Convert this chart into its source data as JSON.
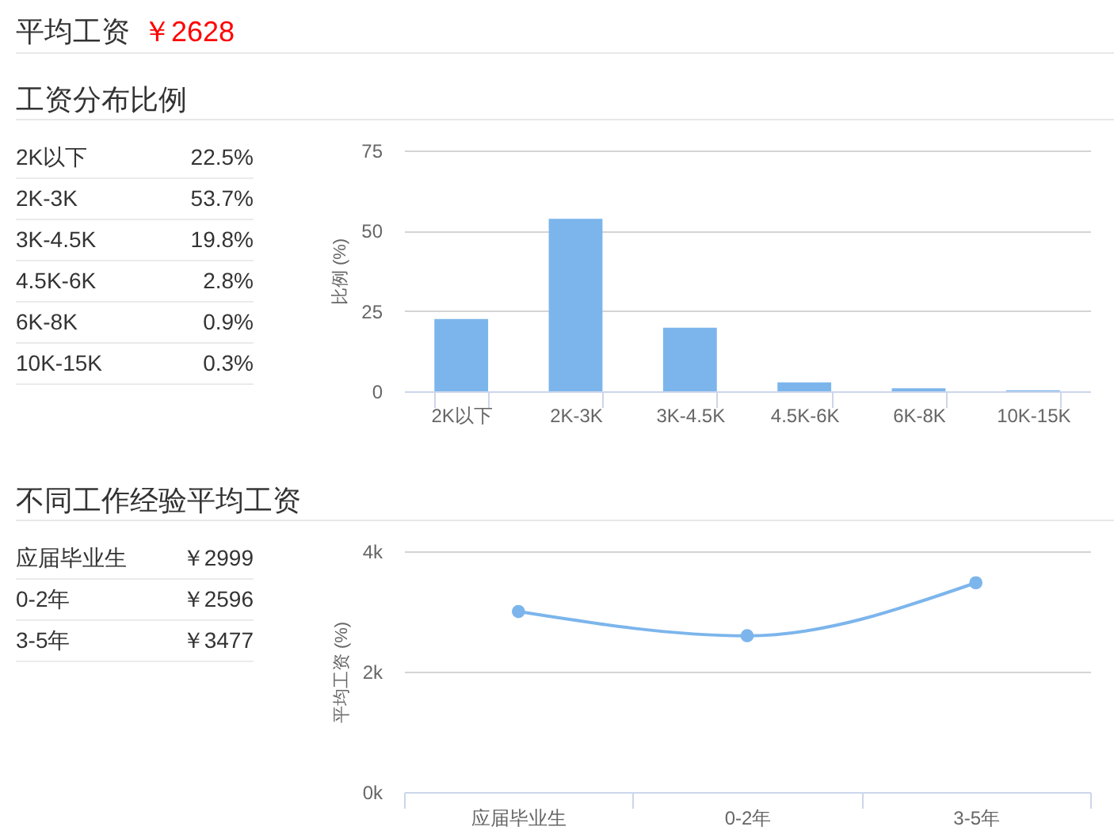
{
  "chart_data": [
    {
      "type": "other",
      "title": "平均工资",
      "annotations": [
        "￥2628"
      ]
    },
    {
      "type": "other",
      "title": "工资分布比例",
      "annotations": [
        "2K以下",
        "22.5%",
        "2K-3K",
        "53.7%",
        "3K-4.5K",
        "19.8%",
        "4.5K-6K",
        "2.8%",
        "6K-8K",
        "0.9%",
        "10K-15K",
        "0.3%"
      ]
    },
    {
      "type": "bar",
      "categories": [
        "2K以下",
        "2K-3K",
        "3K-4.5K",
        "4.5K-6K",
        "6K-8K",
        "10K-15K"
      ],
      "values": [
        22.5,
        53.7,
        19.8,
        2.8,
        0.9,
        0.3
      ],
      "color": "#7cb5ec",
      "ylabel": "比例 (%)",
      "ylim": [
        0,
        75
      ],
      "yticks": [
        0,
        25,
        50,
        75
      ],
      "grid": "y"
    },
    {
      "type": "other",
      "title": "不同工作经验平均工资",
      "annotations": [
        "应届毕业生",
        "￥2999",
        "0-2年",
        "￥2596",
        "3-5年",
        "￥3477"
      ]
    },
    {
      "type": "line",
      "categories": [
        "应届毕业生",
        "0-2年",
        "3-5年"
      ],
      "values": [
        2999,
        2596,
        3477
      ],
      "color": "#7cb5ec",
      "ylabel": "平均工资 (%)",
      "ylim": [
        0,
        4000
      ],
      "yticks": [
        {
          "value": 0,
          "label": "0k"
        },
        {
          "value": 2000,
          "label": "2k"
        },
        {
          "value": 4000,
          "label": "4k"
        }
      ],
      "grid": "y",
      "marker": "circle"
    }
  ]
}
